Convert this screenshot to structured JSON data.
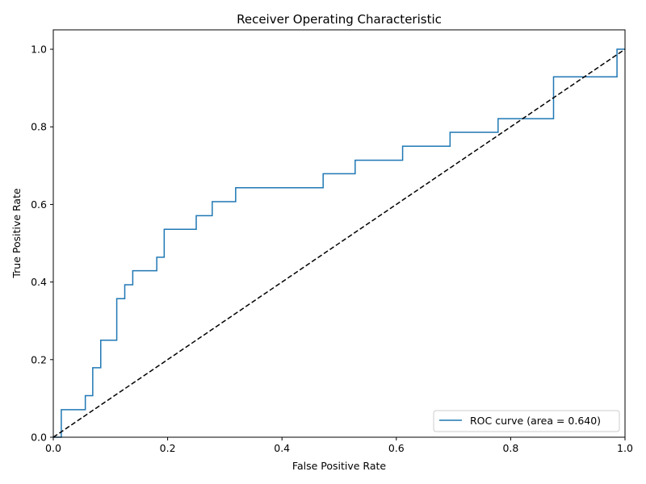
{
  "chart_data": {
    "type": "line",
    "title": "Receiver Operating Characteristic",
    "xlabel": "False Positive Rate",
    "ylabel": "True Positive Rate",
    "xlim": [
      0.0,
      1.0
    ],
    "ylim": [
      0.0,
      1.05
    ],
    "x_ticks": [
      "0.0",
      "0.2",
      "0.4",
      "0.6",
      "0.8",
      "1.0"
    ],
    "y_ticks": [
      "0.0",
      "0.2",
      "0.4",
      "0.6",
      "0.8",
      "1.0"
    ],
    "grid": false,
    "legend_position": "lower-right",
    "series": [
      {
        "name": "ROC curve (area = 0.640)",
        "color": "#1f77b4",
        "style": "solid",
        "step": true,
        "x": [
          0.0,
          0.014,
          0.014,
          0.056,
          0.056,
          0.069,
          0.069,
          0.083,
          0.083,
          0.111,
          0.111,
          0.125,
          0.125,
          0.139,
          0.139,
          0.181,
          0.181,
          0.194,
          0.194,
          0.25,
          0.25,
          0.278,
          0.278,
          0.319,
          0.319,
          0.472,
          0.472,
          0.528,
          0.528,
          0.611,
          0.611,
          0.694,
          0.694,
          0.778,
          0.778,
          0.875,
          0.875,
          0.986,
          0.986,
          1.0
        ],
        "y": [
          0.0,
          0.0,
          0.071,
          0.071,
          0.107,
          0.107,
          0.179,
          0.179,
          0.25,
          0.25,
          0.357,
          0.357,
          0.393,
          0.393,
          0.429,
          0.429,
          0.464,
          0.464,
          0.536,
          0.536,
          0.571,
          0.571,
          0.607,
          0.607,
          0.643,
          0.643,
          0.679,
          0.679,
          0.714,
          0.714,
          0.75,
          0.75,
          0.786,
          0.786,
          0.821,
          0.821,
          0.929,
          0.929,
          1.0,
          1.0
        ]
      },
      {
        "name": "",
        "color": "#000000",
        "style": "dashed",
        "x": [
          0.0,
          1.0
        ],
        "y": [
          0.0,
          1.0
        ]
      }
    ]
  }
}
